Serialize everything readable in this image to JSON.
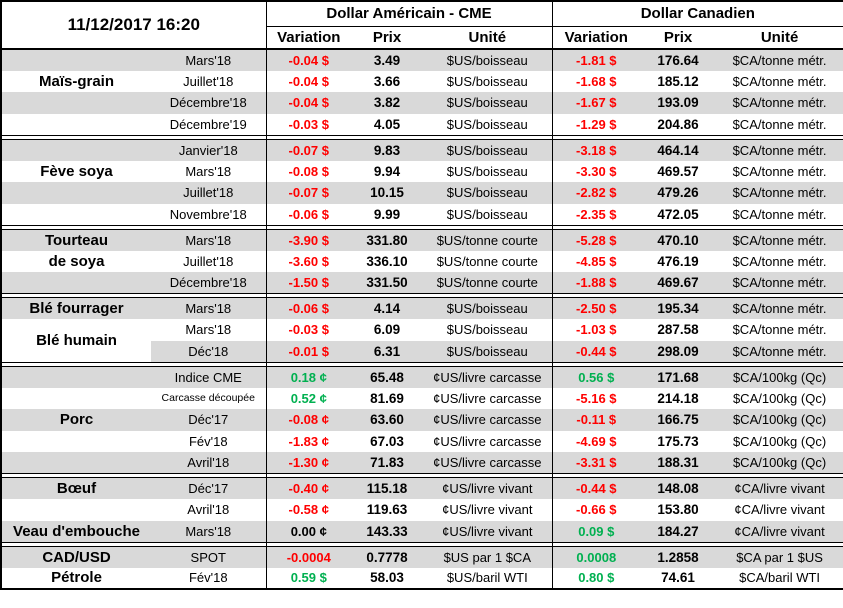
{
  "header": {
    "datetime": "11/12/2017 16:20",
    "usd_title": "Dollar Américain - CME",
    "cad_title": "Dollar Canadien",
    "columns": {
      "variation": "Variation",
      "prix": "Prix",
      "unite": "Unité"
    }
  },
  "colors": {
    "negative": "#FF0000",
    "positive": "#00B050",
    "neutral": "#000000",
    "row_shade": "#D9D9D9",
    "border": "#000000"
  },
  "sections": [
    {
      "name": "mais-grain",
      "rows": [
        {
          "label": "",
          "month": "Mars'18",
          "uv": "-0.04 $",
          "uvc": "n",
          "up": "3.49",
          "uu": "$US/boisseau",
          "cv": "-1.81 $",
          "cvc": "n",
          "cp": "176.64",
          "cu": "$CA/tonne métr.",
          "shade": true
        },
        {
          "label": "Maïs-grain",
          "month": "Juillet'18",
          "uv": "-0.04 $",
          "uvc": "n",
          "up": "3.66",
          "uu": "$US/boisseau",
          "cv": "-1.68 $",
          "cvc": "n",
          "cp": "185.12",
          "cu": "$CA/tonne métr.",
          "shade": false
        },
        {
          "label": "",
          "month": "Décembre'18",
          "uv": "-0.04 $",
          "uvc": "n",
          "up": "3.82",
          "uu": "$US/boisseau",
          "cv": "-1.67 $",
          "cvc": "n",
          "cp": "193.09",
          "cu": "$CA/tonne métr.",
          "shade": true
        },
        {
          "label": "",
          "month": "Décembre'19",
          "uv": "-0.03 $",
          "uvc": "n",
          "up": "4.05",
          "uu": "$US/boisseau",
          "cv": "-1.29 $",
          "cvc": "n",
          "cp": "204.86",
          "cu": "$CA/tonne métr.",
          "shade": false
        }
      ]
    },
    {
      "name": "feve-soya",
      "rows": [
        {
          "label": "",
          "month": "Janvier'18",
          "uv": "-0.07 $",
          "uvc": "n",
          "up": "9.83",
          "uu": "$US/boisseau",
          "cv": "-3.18 $",
          "cvc": "n",
          "cp": "464.14",
          "cu": "$CA/tonne métr.",
          "shade": true
        },
        {
          "label": "Fève soya",
          "month": "Mars'18",
          "uv": "-0.08 $",
          "uvc": "n",
          "up": "9.94",
          "uu": "$US/boisseau",
          "cv": "-3.30 $",
          "cvc": "n",
          "cp": "469.57",
          "cu": "$CA/tonne métr.",
          "shade": false
        },
        {
          "label": "",
          "month": "Juillet'18",
          "uv": "-0.07 $",
          "uvc": "n",
          "up": "10.15",
          "uu": "$US/boisseau",
          "cv": "-2.82 $",
          "cvc": "n",
          "cp": "479.26",
          "cu": "$CA/tonne métr.",
          "shade": true
        },
        {
          "label": "",
          "month": "Novembre'18",
          "uv": "-0.06 $",
          "uvc": "n",
          "up": "9.99",
          "uu": "$US/boisseau",
          "cv": "-2.35 $",
          "cvc": "n",
          "cp": "472.05",
          "cu": "$CA/tonne métr.",
          "shade": false
        }
      ]
    },
    {
      "name": "tourteau-de-soya",
      "rows": [
        {
          "label": "Tourteau",
          "month": "Mars'18",
          "uv": "-3.90 $",
          "uvc": "n",
          "up": "331.80",
          "uu": "$US/tonne courte",
          "cv": "-5.28 $",
          "cvc": "n",
          "cp": "470.10",
          "cu": "$CA/tonne métr.",
          "shade": true
        },
        {
          "label": "de soya",
          "month": "Juillet'18",
          "uv": "-3.60 $",
          "uvc": "n",
          "up": "336.10",
          "uu": "$US/tonne courte",
          "cv": "-4.85 $",
          "cvc": "n",
          "cp": "476.19",
          "cu": "$CA/tonne métr.",
          "shade": false
        },
        {
          "label": "",
          "month": "Décembre'18",
          "uv": "-1.50 $",
          "uvc": "n",
          "up": "331.50",
          "uu": "$US/tonne courte",
          "cv": "-1.88 $",
          "cvc": "n",
          "cp": "469.67",
          "cu": "$CA/tonne métr.",
          "shade": true
        }
      ]
    },
    {
      "name": "ble",
      "rows": [
        {
          "label": "Blé fourrager",
          "month": "Mars'18",
          "uv": "-0.06 $",
          "uvc": "n",
          "up": "4.14",
          "uu": "$US/boisseau",
          "cv": "-2.50 $",
          "cvc": "n",
          "cp": "195.34",
          "cu": "$CA/tonne métr.",
          "shade": true
        },
        {
          "label": "Blé humain",
          "labelSpan": 2,
          "month": "Mars'18",
          "uv": "-0.03 $",
          "uvc": "n",
          "up": "6.09",
          "uu": "$US/boisseau",
          "cv": "-1.03 $",
          "cvc": "n",
          "cp": "287.58",
          "cu": "$CA/tonne métr.",
          "shade": false
        },
        {
          "skipLabel": true,
          "month": "Déc'18",
          "uv": "-0.01 $",
          "uvc": "n",
          "up": "6.31",
          "uu": "$US/boisseau",
          "cv": "-0.44 $",
          "cvc": "n",
          "cp": "298.09",
          "cu": "$CA/tonne métr.",
          "shade": true
        }
      ]
    },
    {
      "name": "porc",
      "rows": [
        {
          "label": "",
          "month": "Indice CME",
          "uv": "0.18 ¢",
          "uvc": "p",
          "up": "65.48",
          "uu": "¢US/livre carcasse",
          "cv": "0.56 $",
          "cvc": "p",
          "cp": "171.68",
          "cu": "$CA/100kg (Qc)",
          "shade": true
        },
        {
          "label": "",
          "month": "Carcasse découpée",
          "small": true,
          "uv": "0.52 ¢",
          "uvc": "p",
          "up": "81.69",
          "uu": "¢US/livre carcasse",
          "cv": "-5.16 $",
          "cvc": "n",
          "cp": "214.18",
          "cu": "$CA/100kg (Qc)",
          "shade": false
        },
        {
          "label": "Porc",
          "month": "Déc'17",
          "uv": "-0.08 ¢",
          "uvc": "n",
          "up": "63.60",
          "uu": "¢US/livre carcasse",
          "cv": "-0.11 $",
          "cvc": "n",
          "cp": "166.75",
          "cu": "$CA/100kg (Qc)",
          "shade": true
        },
        {
          "label": "",
          "month": "Fév'18",
          "uv": "-1.83 ¢",
          "uvc": "n",
          "up": "67.03",
          "uu": "¢US/livre carcasse",
          "cv": "-4.69 $",
          "cvc": "n",
          "cp": "175.73",
          "cu": "$CA/100kg (Qc)",
          "shade": false
        },
        {
          "label": "",
          "month": "Avril'18",
          "uv": "-1.30 ¢",
          "uvc": "n",
          "up": "71.83",
          "uu": "¢US/livre carcasse",
          "cv": "-3.31 $",
          "cvc": "n",
          "cp": "188.31",
          "cu": "$CA/100kg (Qc)",
          "shade": true
        }
      ]
    },
    {
      "name": "boeuf-veau",
      "rows": [
        {
          "label": "Bœuf",
          "month": "Déc'17",
          "uv": "-0.40 ¢",
          "uvc": "n",
          "up": "115.18",
          "uu": "¢US/livre vivant",
          "cv": "-0.44 $",
          "cvc": "n",
          "cp": "148.08",
          "cu": "¢CA/livre vivant",
          "shade": true
        },
        {
          "label": "",
          "month": "Avril'18",
          "uv": "-0.58 ¢",
          "uvc": "n",
          "up": "119.63",
          "uu": "¢US/livre vivant",
          "cv": "-0.66 $",
          "cvc": "n",
          "cp": "153.80",
          "cu": "¢CA/livre vivant",
          "shade": false
        },
        {
          "label": "Veau d'embouche",
          "month": "Mars'18",
          "uv": "0.00 ¢",
          "uvc": "z",
          "up": "143.33",
          "uu": "¢US/livre vivant",
          "cv": "0.09 $",
          "cvc": "p",
          "cp": "184.27",
          "cu": "¢CA/livre vivant",
          "shade": true
        }
      ]
    },
    {
      "name": "fx-petrole",
      "rows": [
        {
          "label": "CAD/USD",
          "month": "SPOT",
          "uv": "-0.0004",
          "uvc": "n",
          "up": "0.7778",
          "uu": "$US par 1 $CA",
          "cv": "0.0008",
          "cvc": "p",
          "cp": "1.2858",
          "cu": "$CA par 1 $US",
          "shade": true
        },
        {
          "label": "Pétrole",
          "month": "Fév'18",
          "uv": "0.59 $",
          "uvc": "p",
          "up": "58.03",
          "uu": "$US/baril WTI",
          "cv": "0.80 $",
          "cvc": "p",
          "cp": "74.61",
          "cu": "$CA/baril WTI",
          "shade": false
        }
      ]
    }
  ]
}
